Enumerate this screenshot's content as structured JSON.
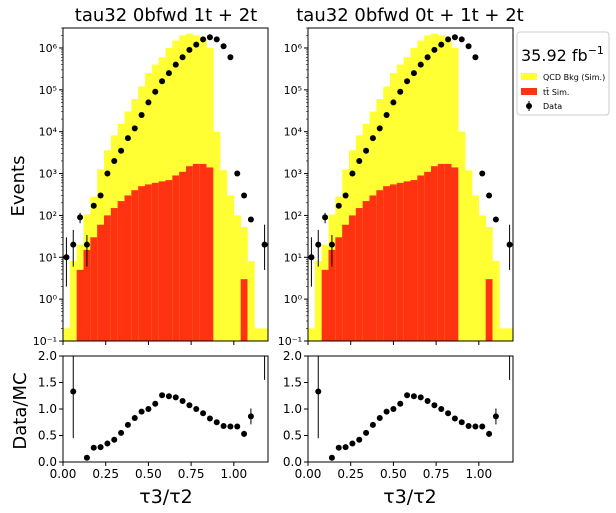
{
  "figure": {
    "ylabel_main": "Events",
    "ylabel_ratio": "Data/MC",
    "xlabel": "τ3/τ2"
  },
  "legend": {
    "lumi": "35.92 fb",
    "lumi_sup": "−1",
    "entries": [
      {
        "label": "QCD Bkg (Sim.)",
        "color": "#ffff33",
        "kind": "fill"
      },
      {
        "label": "tt̄ Sim.",
        "color": "#ff3311",
        "kind": "fill"
      },
      {
        "label": "Data",
        "color": "#000000",
        "kind": "marker"
      }
    ]
  },
  "colors": {
    "qcd": "#ffff33",
    "ttbar": "#ff3311",
    "data": "#000000"
  },
  "chart_data": [
    {
      "type": "bar",
      "title": "tau32  0bfwd 1t + 2t",
      "xlabel": "τ3/τ2",
      "ylabel": "Events",
      "ylog": true,
      "ylim": [
        0.1,
        3000000
      ],
      "xlim": [
        0.0,
        1.2
      ],
      "xticks": [
        "0.00",
        "0.25",
        "0.50",
        "0.75",
        "1.00"
      ],
      "yticks": [
        "10⁻¹",
        "10⁰",
        "10¹",
        "10²",
        "10³",
        "10⁴",
        "10⁵",
        "10⁶"
      ],
      "bin_edges": [
        0.0,
        0.04,
        0.08,
        0.12,
        0.16,
        0.2,
        0.24,
        0.28,
        0.32,
        0.36,
        0.4,
        0.44,
        0.48,
        0.52,
        0.56,
        0.6,
        0.64,
        0.68,
        0.72,
        0.76,
        0.8,
        0.84,
        0.88,
        0.92,
        0.96,
        1.0,
        1.04,
        1.08,
        1.12,
        1.16,
        1.2
      ],
      "series": [
        {
          "name": "QCD Bkg (Sim.)",
          "stack": true,
          "values": [
            0.1,
            8,
            15,
            90,
            250,
            1200,
            3500,
            8000,
            15000,
            30000,
            60000,
            120000,
            250000,
            400000,
            600000,
            1000000,
            1500000,
            2000000,
            2200000,
            2000000,
            1600000,
            1000000,
            10000,
            1200,
            300,
            100,
            50,
            8,
            0.1,
            0.1
          ]
        },
        {
          "name": "tt̄ Sim.",
          "stack": true,
          "values": [
            0.1,
            0.1,
            5,
            15,
            30,
            60,
            100,
            150,
            220,
            300,
            400,
            500,
            550,
            600,
            650,
            700,
            900,
            1100,
            1500,
            1700,
            1700,
            1400,
            0.1,
            0.1,
            0.1,
            0.1,
            3,
            0.1,
            0.1,
            0.1
          ]
        }
      ],
      "data_points": {
        "name": "Data",
        "x": [
          0.02,
          0.06,
          0.1,
          0.14,
          0.18,
          0.22,
          0.26,
          0.3,
          0.34,
          0.38,
          0.42,
          0.46,
          0.5,
          0.54,
          0.58,
          0.62,
          0.66,
          0.7,
          0.74,
          0.78,
          0.82,
          0.86,
          0.9,
          0.94,
          0.98,
          1.02,
          1.06,
          1.1,
          1.14,
          1.18
        ],
        "y": [
          10,
          20,
          90,
          20,
          170,
          300,
          1000,
          2000,
          3500,
          7000,
          12000,
          25000,
          50000,
          90000,
          160000,
          250000,
          400000,
          600000,
          900000,
          1200000,
          1600000,
          1800000,
          1600000,
          1100000,
          600000,
          1000,
          300,
          80,
          0.1,
          20
        ],
        "yerr_low": [
          8,
          14,
          25,
          14,
          20,
          20,
          30,
          40,
          50,
          80,
          100,
          150,
          200,
          300,
          400,
          500,
          600,
          800,
          1000,
          1100,
          1300,
          1300,
          1300,
          1000,
          800,
          30,
          18,
          9,
          0,
          15
        ],
        "yerr_high": [
          20,
          25,
          25,
          14,
          20,
          20,
          30,
          40,
          50,
          80,
          100,
          150,
          200,
          300,
          400,
          500,
          600,
          800,
          1000,
          1100,
          1300,
          1300,
          1300,
          1000,
          800,
          30,
          18,
          9,
          0,
          40
        ]
      },
      "ratio": {
        "ylabel": "Data/MC",
        "ylim": [
          0.0,
          2.0
        ],
        "yticks": [
          "0.0",
          "0.5",
          "1.0",
          "1.5",
          "2.0"
        ],
        "x": [
          0.06,
          0.14,
          0.18,
          0.22,
          0.26,
          0.3,
          0.34,
          0.38,
          0.42,
          0.46,
          0.5,
          0.54,
          0.58,
          0.62,
          0.66,
          0.7,
          0.74,
          0.78,
          0.82,
          0.86,
          0.9,
          0.94,
          0.98,
          1.02,
          1.06,
          1.1
        ],
        "y": [
          1.33,
          0.08,
          0.27,
          0.28,
          0.35,
          0.42,
          0.55,
          0.7,
          0.83,
          0.95,
          1.0,
          1.1,
          1.26,
          1.24,
          1.22,
          1.15,
          1.07,
          1.0,
          0.92,
          0.82,
          0.75,
          0.68,
          0.67,
          0.67,
          0.53,
          0.86
        ],
        "yerr": [
          0.88,
          0.05,
          0.04,
          0.04,
          0.03,
          0.03,
          0.03,
          0.03,
          0.02,
          0.02,
          0.02,
          0.02,
          0.02,
          0.02,
          0.02,
          0.02,
          0.02,
          0.02,
          0.02,
          0.02,
          0.03,
          0.03,
          0.04,
          0.05,
          0.06,
          0.15
        ],
        "overflow": [
          {
            "x": 1.18,
            "from": 1.55
          }
        ]
      }
    },
    {
      "type": "bar",
      "title": "tau32  0bfwd 0t + 1t + 2t",
      "xlabel": "τ3/τ2",
      "ylabel": "",
      "ylog": true,
      "ylim": [
        0.1,
        3000000
      ],
      "xlim": [
        0.0,
        1.2
      ],
      "xticks": [
        "0.00",
        "0.25",
        "0.50",
        "0.75",
        "1.00"
      ],
      "yticks": [
        "10⁻¹",
        "10⁰",
        "10¹",
        "10²",
        "10³",
        "10⁴",
        "10⁵",
        "10⁶"
      ],
      "bin_edges": [
        0.0,
        0.04,
        0.08,
        0.12,
        0.16,
        0.2,
        0.24,
        0.28,
        0.32,
        0.36,
        0.4,
        0.44,
        0.48,
        0.52,
        0.56,
        0.6,
        0.64,
        0.68,
        0.72,
        0.76,
        0.8,
        0.84,
        0.88,
        0.92,
        0.96,
        1.0,
        1.04,
        1.08,
        1.12,
        1.16,
        1.2
      ],
      "series": [
        {
          "name": "QCD Bkg (Sim.)",
          "stack": true,
          "values": [
            0.1,
            8,
            15,
            90,
            250,
            1200,
            3500,
            8000,
            15000,
            30000,
            60000,
            120000,
            250000,
            400000,
            600000,
            1000000,
            1500000,
            2000000,
            2200000,
            2000000,
            1600000,
            1000000,
            10000,
            1200,
            300,
            100,
            50,
            8,
            0.1,
            0.1
          ]
        },
        {
          "name": "tt̄ Sim.",
          "stack": true,
          "values": [
            0.1,
            0.1,
            5,
            15,
            30,
            60,
            100,
            150,
            220,
            300,
            400,
            500,
            550,
            600,
            650,
            700,
            900,
            1100,
            1500,
            1700,
            1700,
            1400,
            0.1,
            0.1,
            0.1,
            0.1,
            3,
            0.1,
            0.1,
            0.1
          ]
        }
      ],
      "data_points": {
        "name": "Data",
        "x": [
          0.02,
          0.06,
          0.1,
          0.14,
          0.18,
          0.22,
          0.26,
          0.3,
          0.34,
          0.38,
          0.42,
          0.46,
          0.5,
          0.54,
          0.58,
          0.62,
          0.66,
          0.7,
          0.74,
          0.78,
          0.82,
          0.86,
          0.9,
          0.94,
          0.98,
          1.02,
          1.06,
          1.1,
          1.14,
          1.18
        ],
        "y": [
          10,
          20,
          90,
          20,
          170,
          300,
          1000,
          2000,
          3500,
          7000,
          12000,
          25000,
          50000,
          90000,
          160000,
          250000,
          400000,
          600000,
          900000,
          1200000,
          1600000,
          1800000,
          1600000,
          1100000,
          600000,
          1000,
          300,
          80,
          0.1,
          20
        ],
        "yerr_low": [
          8,
          14,
          25,
          14,
          20,
          20,
          30,
          40,
          50,
          80,
          100,
          150,
          200,
          300,
          400,
          500,
          600,
          800,
          1000,
          1100,
          1300,
          1300,
          1300,
          1000,
          800,
          30,
          18,
          9,
          0,
          15
        ],
        "yerr_high": [
          20,
          25,
          25,
          14,
          20,
          20,
          30,
          40,
          50,
          80,
          100,
          150,
          200,
          300,
          400,
          500,
          600,
          800,
          1000,
          1100,
          1300,
          1300,
          1300,
          1000,
          800,
          30,
          18,
          9,
          0,
          40
        ]
      },
      "ratio": {
        "ylabel": "",
        "ylim": [
          0.0,
          2.0
        ],
        "yticks": [
          "0.0",
          "0.5",
          "1.0",
          "1.5",
          "2.0"
        ],
        "x": [
          0.06,
          0.14,
          0.18,
          0.22,
          0.26,
          0.3,
          0.34,
          0.38,
          0.42,
          0.46,
          0.5,
          0.54,
          0.58,
          0.62,
          0.66,
          0.7,
          0.74,
          0.78,
          0.82,
          0.86,
          0.9,
          0.94,
          0.98,
          1.02,
          1.06,
          1.1
        ],
        "y": [
          1.33,
          0.08,
          0.27,
          0.28,
          0.35,
          0.42,
          0.55,
          0.7,
          0.83,
          0.95,
          1.0,
          1.1,
          1.26,
          1.24,
          1.22,
          1.15,
          1.07,
          1.0,
          0.92,
          0.82,
          0.75,
          0.68,
          0.67,
          0.67,
          0.53,
          0.86
        ],
        "yerr": [
          0.88,
          0.05,
          0.04,
          0.04,
          0.03,
          0.03,
          0.03,
          0.03,
          0.02,
          0.02,
          0.02,
          0.02,
          0.02,
          0.02,
          0.02,
          0.02,
          0.02,
          0.02,
          0.02,
          0.02,
          0.03,
          0.03,
          0.04,
          0.05,
          0.06,
          0.15
        ],
        "overflow": [
          {
            "x": 1.18,
            "from": 1.55
          }
        ]
      }
    }
  ]
}
